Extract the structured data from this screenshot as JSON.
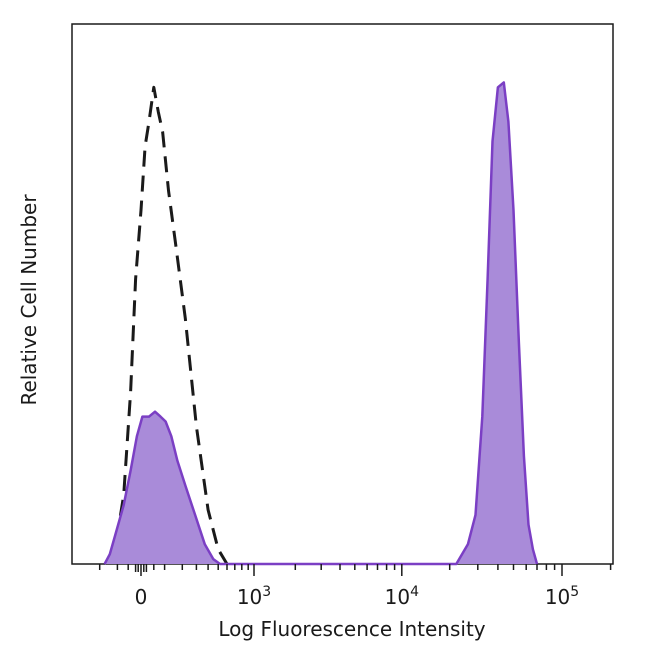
{
  "chart_data": {
    "type": "area",
    "title": "",
    "xlabel": "Log Fluorescence Intensity",
    "ylabel": "Relative Cell Number",
    "x_scale": "biexponential",
    "xlim": [
      -300,
      250000
    ],
    "ylim": [
      0,
      100
    ],
    "grid": false,
    "legend": "none",
    "x_tick_labels": [
      {
        "value": 0,
        "base": "0",
        "exp": ""
      },
      {
        "value": 1000,
        "base": "10",
        "exp": "3"
      },
      {
        "value": 10000,
        "base": "10",
        "exp": "4"
      },
      {
        "value": 100000,
        "base": "10",
        "exp": "5"
      }
    ],
    "series": [
      {
        "style": "dashed",
        "color": "#1a1a1a",
        "fill": "none",
        "points": [
          [
            -150,
            0
          ],
          [
            -100,
            6
          ],
          [
            -70,
            14
          ],
          [
            -40,
            35
          ],
          [
            -20,
            58
          ],
          [
            0,
            72
          ],
          [
            15,
            85
          ],
          [
            30,
            90
          ],
          [
            50,
            97
          ],
          [
            70,
            92
          ],
          [
            90,
            88
          ],
          [
            120,
            76
          ],
          [
            160,
            65
          ],
          [
            220,
            50
          ],
          [
            300,
            28
          ],
          [
            400,
            11
          ],
          [
            500,
            3
          ],
          [
            600,
            0
          ]
        ]
      },
      {
        "style": "solid",
        "color": "#7b3fc4",
        "fill": "#a98bd9",
        "points": [
          [
            -170,
            0
          ],
          [
            -140,
            2
          ],
          [
            -110,
            6
          ],
          [
            -70,
            12
          ],
          [
            -40,
            19
          ],
          [
            -15,
            26
          ],
          [
            5,
            30
          ],
          [
            30,
            30
          ],
          [
            55,
            31
          ],
          [
            80,
            30
          ],
          [
            105,
            29
          ],
          [
            135,
            26
          ],
          [
            170,
            21
          ],
          [
            220,
            16
          ],
          [
            290,
            10
          ],
          [
            370,
            4
          ],
          [
            450,
            1
          ],
          [
            520,
            0
          ],
          [
            22000,
            0
          ],
          [
            26000,
            4
          ],
          [
            29000,
            10
          ],
          [
            32000,
            30
          ],
          [
            34500,
            58
          ],
          [
            37000,
            86
          ],
          [
            40000,
            97
          ],
          [
            43500,
            98
          ],
          [
            46500,
            90
          ],
          [
            50000,
            72
          ],
          [
            54000,
            45
          ],
          [
            58000,
            22
          ],
          [
            62000,
            8
          ],
          [
            66000,
            3
          ],
          [
            70000,
            0
          ]
        ]
      }
    ]
  }
}
